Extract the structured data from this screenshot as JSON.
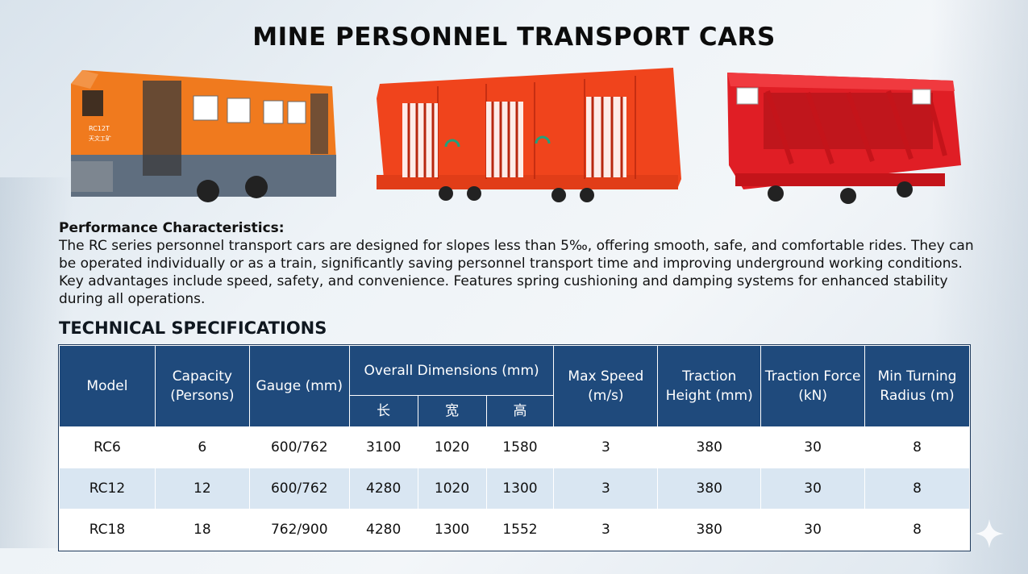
{
  "title": "MINE PERSONNEL TRANSPORT CARS",
  "images": [
    {
      "name": "orange-locomotive-car",
      "plate": "RC12T",
      "brand": "天文工矿"
    },
    {
      "name": "enclosed-red-personnel-car"
    },
    {
      "name": "open-red-personnel-car"
    }
  ],
  "performance": {
    "heading": "Performance Characteristics:",
    "body": "The RC series personnel transport cars are designed for slopes less than 5‰, offering smooth, safe, and comfortable rides. They can be operated individually or as a train, significantly saving personnel transport time and improving underground working conditions. Key advantages include speed, safety, and convenience. Features spring cushioning and damping systems for enhanced stability during all operations."
  },
  "specs": {
    "heading": "TECHNICAL SPECIFICATIONS",
    "headers": {
      "model": "Model",
      "capacity": "Capacity (Persons)",
      "gauge": "Gauge (mm)",
      "dimensions": "Overall Dimensions (mm)",
      "dim_length": "长",
      "dim_width": "宽",
      "dim_height": "高",
      "speed": "Max Speed (m/s)",
      "traction_height": "Traction Height (mm)",
      "traction_force": "Traction Force (kN)",
      "turning_radius": "Min Turning Radius (m)"
    },
    "rows": [
      {
        "model": "RC6",
        "capacity": "6",
        "gauge": "600/762",
        "length": "3100",
        "width": "1020",
        "height": "1580",
        "speed": "3",
        "traction_height": "380",
        "traction_force": "30",
        "turning_radius": "8"
      },
      {
        "model": "RC12",
        "capacity": "12",
        "gauge": "600/762",
        "length": "4280",
        "width": "1020",
        "height": "1300",
        "speed": "3",
        "traction_height": "380",
        "traction_force": "30",
        "turning_radius": "8"
      },
      {
        "model": "RC18",
        "capacity": "18",
        "gauge": "762/900",
        "length": "4280",
        "width": "1300",
        "height": "1552",
        "speed": "3",
        "traction_height": "380",
        "traction_force": "30",
        "turning_radius": "8"
      }
    ]
  },
  "colors": {
    "header_bg": "#1f4a7c",
    "row_alt_bg": "#d9e6f2",
    "orange": "#f07a1e",
    "red_orange": "#f0441c",
    "red": "#e01e25"
  },
  "icons": [
    "sparkle-icon"
  ]
}
